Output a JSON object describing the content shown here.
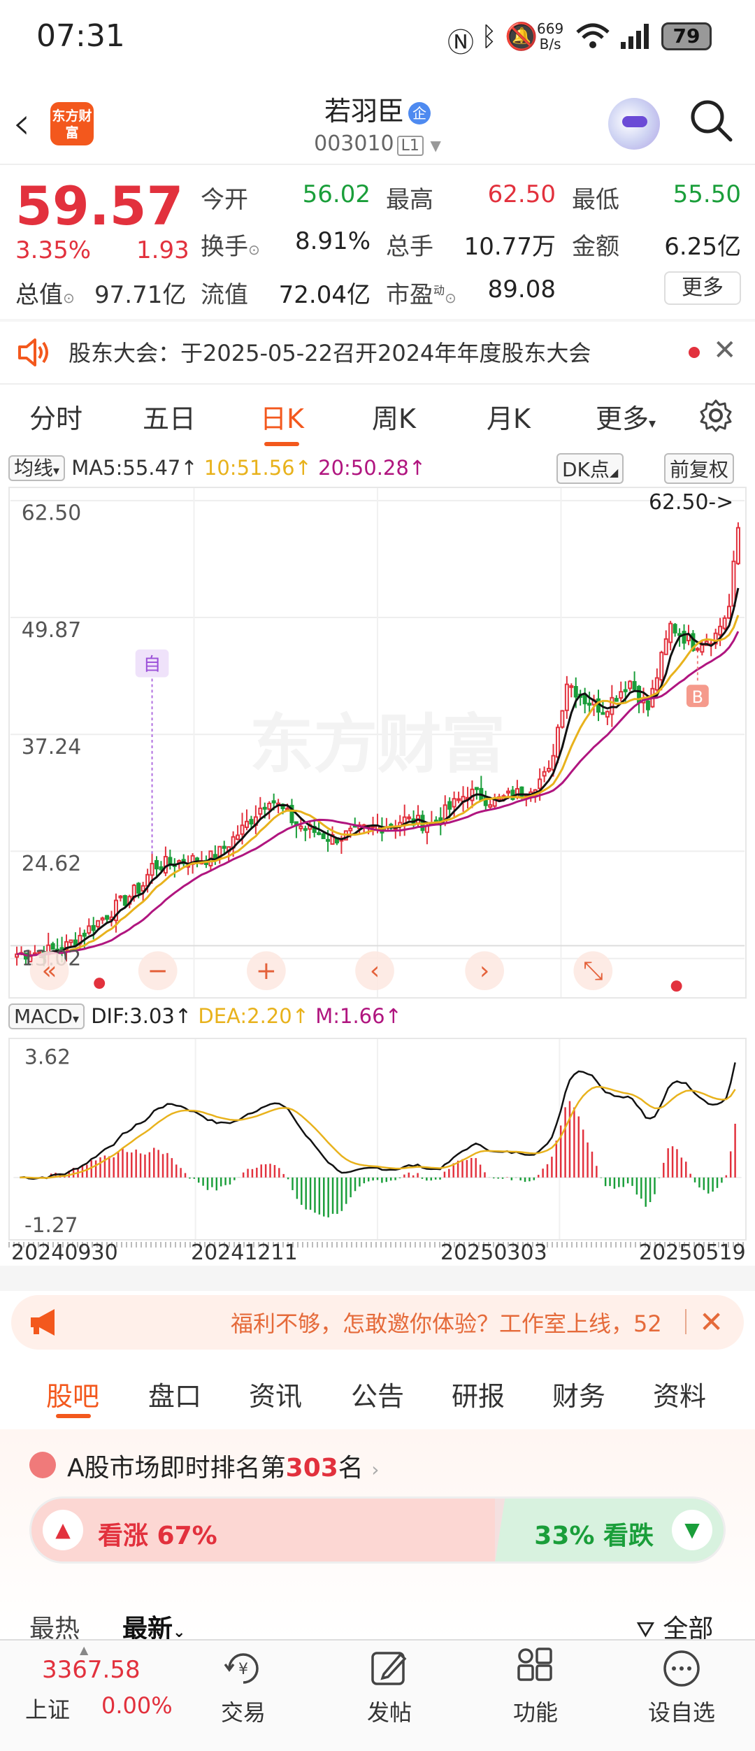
{
  "status_bar": {
    "time": "07:31",
    "net_speed_value": "669",
    "net_speed_unit": "B/s",
    "battery": "79"
  },
  "header": {
    "logo_text": "东方财富",
    "stock_name": "若羽臣",
    "badge": "企",
    "stock_code": "003010",
    "level": "L1"
  },
  "quote": {
    "price": "59.57",
    "change_pct": "3.35%",
    "change": "1.93",
    "fields": [
      {
        "label": "今开",
        "value": "56.02",
        "color": "green"
      },
      {
        "label": "最高",
        "value": "62.50",
        "color": "red"
      },
      {
        "label": "最低",
        "value": "55.50",
        "color": "green"
      },
      {
        "label": "换手",
        "value": "8.91%",
        "color": "black"
      },
      {
        "label": "总手",
        "value": "10.77万",
        "color": "black"
      },
      {
        "label": "金额",
        "value": "6.25亿",
        "color": "black"
      },
      {
        "label": "流值",
        "value": "72.04亿",
        "color": "black"
      },
      {
        "label": "市盈",
        "value": "89.08",
        "color": "black"
      }
    ],
    "market_cap_label": "总值",
    "market_cap_value": "97.71亿",
    "more_label": "更多"
  },
  "notice": {
    "text": "股东大会：于2025-05-22召开2024年年度股东大会"
  },
  "chart_tabs": [
    "分时",
    "五日",
    "日K",
    "周K",
    "月K",
    "更多"
  ],
  "active_tab": "日K",
  "indicators": {
    "ma_selector": "均线",
    "ma5": "MA5:55.47↑",
    "ma10": "10:51.56↑",
    "ma20": "20:50.28↑",
    "dk_label": "DK点",
    "adjust_label": "前复权",
    "macd_selector": "MACD",
    "dif": "DIF:3.03↑",
    "dea": "DEA:2.20↑",
    "m": "M:1.66↑"
  },
  "colors": {
    "accent": "#f3581d",
    "up": "#e2313d",
    "down": "#1a9e3a",
    "ma5": "#111111",
    "ma10": "#e8b21c",
    "ma20": "#b0157f"
  },
  "chart_data": [
    {
      "type": "candlestick",
      "y_ticks": [
        "62.50",
        "49.87",
        "37.24",
        "24.62",
        "13.02"
      ],
      "ylim": [
        12.0,
        62.5
      ],
      "high_annotation": "62.50->",
      "markers": [
        {
          "label": "自",
          "index": 30
        },
        {
          "label": "B",
          "index": 151
        }
      ],
      "watermark": "东方财富",
      "anchor_closes": [
        [
          0,
          13.5
        ],
        [
          10,
          14.0
        ],
        [
          18,
          17.0
        ],
        [
          28,
          21.0
        ],
        [
          30,
          23.0
        ],
        [
          36,
          23.5
        ],
        [
          44,
          24.0
        ],
        [
          50,
          27.0
        ],
        [
          56,
          30.5
        ],
        [
          62,
          27.5
        ],
        [
          70,
          26.0
        ],
        [
          78,
          27.0
        ],
        [
          86,
          28.0
        ],
        [
          92,
          27.5
        ],
        [
          100,
          31.0
        ],
        [
          106,
          30.0
        ],
        [
          112,
          31.0
        ],
        [
          118,
          33.0
        ],
        [
          122,
          43.0
        ],
        [
          126,
          41.0
        ],
        [
          130,
          40.0
        ],
        [
          136,
          43.0
        ],
        [
          140,
          40.0
        ],
        [
          145,
          49.0
        ],
        [
          150,
          47.0
        ],
        [
          155,
          48.0
        ],
        [
          158,
          51.0
        ],
        [
          160,
          59.57
        ]
      ]
    },
    {
      "type": "macd",
      "y_ticks": [
        "3.62",
        "-1.27"
      ],
      "ylim": [
        -1.6,
        3.9
      ],
      "x_labels": [
        "20240930",
        "20241211",
        "20250303",
        "20250519"
      ]
    }
  ],
  "promo": {
    "text": "福利不够，怎敢邀你体验？工作室上线，52"
  },
  "bottom_tabs": [
    "股吧",
    "盘口",
    "资讯",
    "公告",
    "研报",
    "财务",
    "资料"
  ],
  "ranking": {
    "prefix": "A股市场即时排名第",
    "rank": "303",
    "suffix": "名"
  },
  "sentiment": {
    "bull_label": "看涨 67%",
    "bear_label": "33% 看跌",
    "bull_pct": 67
  },
  "sort": {
    "hot": "最热",
    "new": "最新",
    "filter": "全部"
  },
  "bottom_nav": {
    "index_value": "3367.58",
    "index_name": "上证",
    "index_change": "0.00%",
    "items": [
      "交易",
      "发帖",
      "功能",
      "设自选"
    ]
  }
}
